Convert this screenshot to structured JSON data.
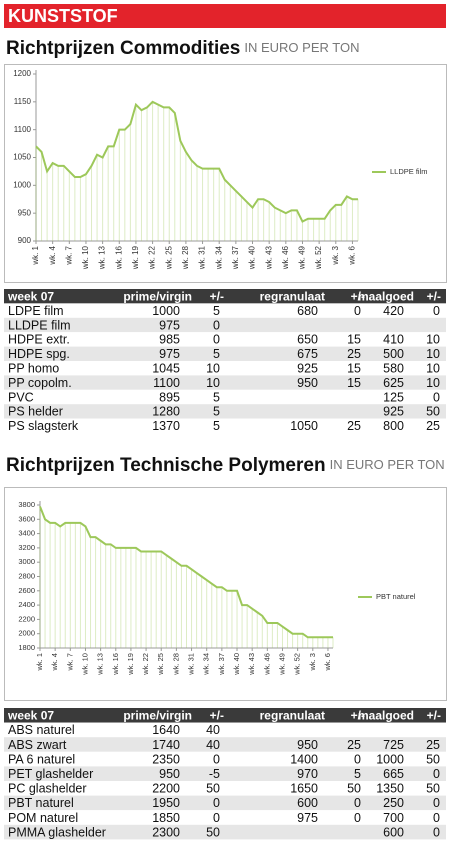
{
  "header": {
    "title": "KUNSTSTOF"
  },
  "chart_data": [
    {
      "type": "line",
      "title": "Richtprijzen Commodities",
      "subtitle": "IN EURO PER TON",
      "categories": [
        "wk. 1",
        null,
        null,
        "wk. 4",
        null,
        null,
        "wk. 7",
        null,
        null,
        "wk. 10",
        null,
        null,
        "wk. 13",
        null,
        null,
        "wk. 16",
        null,
        null,
        "wk. 19",
        null,
        null,
        "wk. 22",
        null,
        null,
        "wk. 25",
        null,
        null,
        "wk. 28",
        null,
        null,
        "wk. 31",
        null,
        null,
        "wk. 34",
        null,
        null,
        "wk. 37",
        null,
        null,
        "wk. 40",
        null,
        null,
        "wk. 43",
        null,
        null,
        "wk. 46",
        null,
        null,
        "wk. 49",
        null,
        null,
        "wk. 52",
        null,
        null,
        "wk. 3",
        null,
        null,
        "wk. 6",
        null
      ],
      "series": [
        {
          "name": "LLDPE film",
          "color": "#9dc85a",
          "values": [
            1070,
            1060,
            1025,
            1040,
            1035,
            1035,
            1025,
            1015,
            1015,
            1020,
            1035,
            1055,
            1050,
            1070,
            1070,
            1100,
            1100,
            1110,
            1145,
            1135,
            1140,
            1150,
            1145,
            1140,
            1140,
            1130,
            1080,
            1060,
            1045,
            1035,
            1030,
            1030,
            1030,
            1030,
            1010,
            1000,
            990,
            980,
            970,
            960,
            975,
            975,
            970,
            960,
            955,
            950,
            955,
            955,
            935,
            940,
            940,
            940,
            940,
            955,
            965,
            965,
            980,
            975,
            975
          ]
        }
      ],
      "ylim": [
        900,
        1200
      ],
      "yticks": [
        900,
        950,
        1000,
        1050,
        1100,
        1150,
        1200
      ]
    },
    {
      "type": "line",
      "title": "Richtprijzen Technische Polymeren",
      "subtitle": "IN EURO PER TON",
      "categories": [
        "wk. 1",
        null,
        null,
        "wk. 4",
        null,
        null,
        "wk. 7",
        null,
        null,
        "wk. 10",
        null,
        null,
        "wk. 13",
        null,
        null,
        "wk. 16",
        null,
        null,
        "wk. 19",
        null,
        null,
        "wk. 22",
        null,
        null,
        "wk. 25",
        null,
        null,
        "wk. 28",
        null,
        null,
        "wk. 31",
        null,
        null,
        "wk. 34",
        null,
        null,
        "wk. 37",
        null,
        null,
        "wk. 40",
        null,
        null,
        "wk. 43",
        null,
        null,
        "wk. 46",
        null,
        null,
        "wk. 49",
        null,
        null,
        "wk. 52",
        null,
        null,
        "wk. 3",
        null,
        null,
        "wk. 6",
        null
      ],
      "series": [
        {
          "name": "PBT naturel",
          "color": "#9dc85a",
          "values": [
            3780,
            3600,
            3550,
            3550,
            3500,
            3550,
            3550,
            3550,
            3550,
            3500,
            3350,
            3350,
            3300,
            3250,
            3250,
            3200,
            3200,
            3200,
            3200,
            3200,
            3150,
            3150,
            3150,
            3150,
            3150,
            3100,
            3050,
            3000,
            2950,
            2950,
            2900,
            2850,
            2800,
            2750,
            2700,
            2650,
            2650,
            2600,
            2600,
            2600,
            2400,
            2400,
            2350,
            2300,
            2250,
            2150,
            2150,
            2150,
            2100,
            2050,
            2000,
            2000,
            2000,
            1950,
            1950,
            1950,
            1950,
            1950,
            1950
          ]
        }
      ],
      "ylim": [
        1800,
        3800
      ],
      "yticks": [
        1800,
        2000,
        2200,
        2400,
        2600,
        2800,
        3000,
        3200,
        3400,
        3600,
        3800
      ]
    }
  ],
  "tables": [
    {
      "columns": [
        "week 07",
        "prime/virgin",
        "+/-",
        "regranulaat",
        "+/-",
        "maalgoed",
        "+/-"
      ],
      "rows": [
        [
          "LDPE film",
          1000,
          5,
          680,
          0,
          420,
          0
        ],
        [
          "LLDPE film",
          975,
          0,
          null,
          null,
          null,
          null
        ],
        [
          "HDPE extr.",
          985,
          0,
          650,
          15,
          410,
          10
        ],
        [
          "HDPE spg.",
          975,
          5,
          675,
          25,
          500,
          10
        ],
        [
          "PP homo",
          1045,
          10,
          925,
          15,
          580,
          10
        ],
        [
          "PP copolm.",
          1100,
          10,
          950,
          15,
          625,
          10
        ],
        [
          "PVC",
          895,
          5,
          null,
          null,
          125,
          0
        ],
        [
          "PS helder",
          1280,
          5,
          null,
          null,
          925,
          50
        ],
        [
          "PS slagsterk",
          1370,
          5,
          1050,
          25,
          800,
          25
        ]
      ]
    },
    {
      "columns": [
        "week 07",
        "prime/virgin",
        "+/-",
        "regranulaat",
        "+/-",
        "maalgoed",
        "+/-"
      ],
      "rows": [
        [
          "ABS naturel",
          1640,
          40,
          null,
          null,
          null,
          null
        ],
        [
          "ABS zwart",
          1740,
          40,
          950,
          25,
          725,
          25
        ],
        [
          "PA 6 naturel",
          2350,
          0,
          1400,
          0,
          1000,
          50
        ],
        [
          "PET glashelder",
          950,
          -5,
          970,
          5,
          665,
          0
        ],
        [
          "PC glashelder",
          2200,
          50,
          1650,
          50,
          1350,
          50
        ],
        [
          "PBT naturel",
          1950,
          0,
          600,
          0,
          250,
          0
        ],
        [
          "POM naturel",
          1850,
          0,
          975,
          0,
          700,
          0
        ],
        [
          "PMMA glashelder",
          2300,
          50,
          null,
          null,
          600,
          0
        ]
      ]
    }
  ]
}
